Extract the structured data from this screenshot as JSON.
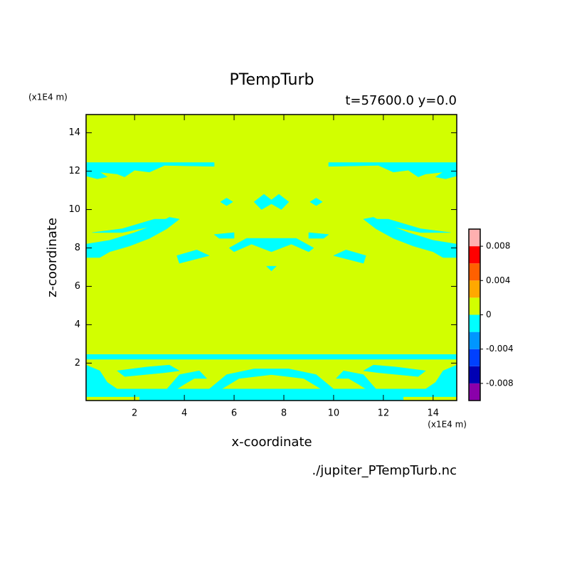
{
  "chart_data": {
    "type": "contourf",
    "title": "PTempTurb",
    "subtitle": "t=57600.0 y=0.0",
    "x_label": "x-coordinate",
    "y_label": "z-coordinate",
    "x_unit": "(x1E4 m)",
    "y_unit": "(x1E4 m)",
    "source": "./jupiter_PTempTurb.nc",
    "xlim": [
      0.05,
      14.95
    ],
    "ylim": [
      0.05,
      14.95
    ],
    "xticks": [
      2,
      4,
      6,
      8,
      10,
      12,
      14
    ],
    "yticks": [
      2,
      4,
      6,
      8,
      10,
      12,
      14
    ],
    "levels": [
      -0.01,
      -0.008,
      -0.006,
      -0.004,
      -0.002,
      0,
      0.002,
      0.004,
      0.006,
      0.008,
      0.01
    ],
    "colors": [
      "#8a00aa",
      "#0000b4",
      "#0040ff",
      "#0096ff",
      "#00ffff",
      "#d2ff00",
      "#ffa800",
      "#ff6000",
      "#ff0000",
      "#ffb0b0"
    ],
    "colorbar_ticks": [
      -0.008,
      -0.004,
      0,
      0.004,
      0.008
    ],
    "regions": [
      {
        "level": 0,
        "x": [
          0.05,
          14.95,
          14.95,
          0.05
        ],
        "z": [
          0.05,
          0.05,
          14.95,
          14.95
        ]
      },
      {
        "level": -0.002,
        "x": [
          0.05,
          5.2,
          5.2,
          3.2,
          2.6,
          2.0,
          1.6,
          1.3,
          0.6,
          0.9,
          0.5,
          0.05
        ],
        "z": [
          12.45,
          12.45,
          12.25,
          12.3,
          11.95,
          12.05,
          11.7,
          11.85,
          11.95,
          11.7,
          11.6,
          11.75
        ]
      },
      {
        "level": -0.002,
        "x": [
          14.95,
          9.8,
          9.8,
          11.8,
          12.4,
          13.0,
          13.4,
          13.7,
          14.4,
          14.1,
          14.5,
          14.95
        ],
        "z": [
          12.45,
          12.45,
          12.25,
          12.3,
          11.95,
          12.05,
          11.7,
          11.85,
          11.95,
          11.7,
          11.6,
          11.75
        ]
      },
      {
        "level": -0.002,
        "x": [
          0.05,
          0.05,
          1.0,
          2.0,
          2.8,
          3.4,
          3.8,
          3.3,
          2.6,
          1.8,
          1.0,
          0.6
        ],
        "z": [
          7.5,
          8.2,
          8.4,
          8.8,
          9.2,
          9.6,
          9.5,
          9.0,
          8.5,
          8.1,
          7.8,
          7.5
        ]
      },
      {
        "level": -0.002,
        "x": [
          14.95,
          14.95,
          14.0,
          13.0,
          12.2,
          11.6,
          11.2,
          11.7,
          12.4,
          13.2,
          14.0,
          14.4
        ],
        "z": [
          7.5,
          8.2,
          8.4,
          8.8,
          9.2,
          9.6,
          9.5,
          9.0,
          8.5,
          8.1,
          7.8,
          7.5
        ]
      },
      {
        "level": -0.002,
        "x": [
          0.3,
          1.5,
          2.8,
          3.3,
          2.6,
          1.5
        ],
        "z": [
          8.8,
          9.0,
          9.5,
          9.5,
          9.1,
          8.8
        ]
      },
      {
        "level": -0.002,
        "x": [
          14.7,
          13.5,
          12.2,
          11.7,
          12.4,
          13.5
        ],
        "z": [
          8.8,
          9.0,
          9.5,
          9.5,
          9.1,
          8.8
        ]
      },
      {
        "level": -0.002,
        "x": [
          3.7,
          4.5,
          5.0,
          4.4,
          3.8
        ],
        "z": [
          7.6,
          7.9,
          7.6,
          7.4,
          7.2
        ]
      },
      {
        "level": -0.002,
        "x": [
          11.3,
          10.5,
          10.0,
          10.6,
          11.2
        ],
        "z": [
          7.6,
          7.9,
          7.6,
          7.4,
          7.2
        ]
      },
      {
        "level": -0.002,
        "x": [
          5.2,
          6.0,
          6.0,
          5.4
        ],
        "z": [
          8.7,
          8.8,
          8.5,
          8.5
        ]
      },
      {
        "level": -0.002,
        "x": [
          9.8,
          9.0,
          9.0,
          9.6
        ],
        "z": [
          8.7,
          8.8,
          8.5,
          8.5
        ]
      },
      {
        "level": -0.002,
        "x": [
          5.8,
          6.5,
          8.5,
          9.2,
          9.0,
          8.3,
          7.5,
          6.7,
          6.0
        ],
        "z": [
          8.0,
          8.5,
          8.5,
          8.0,
          7.8,
          8.2,
          7.8,
          8.2,
          7.8
        ]
      },
      {
        "level": -0.002,
        "x": [
          7.3,
          7.7,
          7.5
        ],
        "z": [
          7.05,
          7.05,
          6.8
        ]
      },
      {
        "level": -0.002,
        "x": [
          5.45,
          5.7,
          5.95,
          5.7
        ],
        "z": [
          10.4,
          10.6,
          10.4,
          10.2
        ]
      },
      {
        "level": -0.002,
        "x": [
          9.55,
          9.3,
          9.05,
          9.3
        ],
        "z": [
          10.4,
          10.6,
          10.4,
          10.2
        ]
      },
      {
        "level": -0.002,
        "x": [
          6.8,
          7.2,
          7.5,
          7.8,
          8.2,
          7.9,
          7.5,
          7.1
        ],
        "z": [
          10.4,
          10.8,
          10.5,
          10.8,
          10.4,
          10.0,
          10.3,
          10.0
        ]
      },
      {
        "level": -0.002,
        "x": [
          0.05,
          14.95,
          14.95,
          0.05
        ],
        "z": [
          2.2,
          2.2,
          2.45,
          2.45
        ]
      },
      {
        "level": -0.002,
        "x": [
          0.05,
          14.95,
          14.95,
          0.05
        ],
        "z": [
          0.25,
          0.25,
          0.65,
          0.65
        ]
      },
      {
        "level": -0.002,
        "x": [
          2.2,
          12.8,
          12.8,
          2.2
        ],
        "z": [
          0.05,
          0.05,
          0.25,
          0.25
        ]
      },
      {
        "level": -0.002,
        "x": [
          1.3,
          2.5,
          3.4,
          3.8,
          3.2,
          2.4,
          1.6
        ],
        "z": [
          1.6,
          1.8,
          1.9,
          1.6,
          1.5,
          1.4,
          1.3
        ]
      },
      {
        "level": -0.002,
        "x": [
          13.7,
          12.5,
          11.6,
          11.2,
          11.8,
          12.6,
          13.4
        ],
        "z": [
          1.6,
          1.8,
          1.9,
          1.6,
          1.5,
          1.4,
          1.3
        ]
      },
      {
        "level": -0.002,
        "x": [
          3.3,
          3.8,
          4.6,
          4.9,
          4.4,
          4.0,
          3.7
        ],
        "z": [
          0.65,
          1.4,
          1.6,
          1.2,
          1.2,
          0.9,
          0.65
        ]
      },
      {
        "level": -0.002,
        "x": [
          11.7,
          11.2,
          10.4,
          10.1,
          10.6,
          11.0,
          11.3
        ],
        "z": [
          0.65,
          1.4,
          1.6,
          1.2,
          1.2,
          0.9,
          0.65
        ]
      },
      {
        "level": -0.002,
        "x": [
          5.0,
          5.7,
          6.8,
          8.2,
          9.3,
          10.0,
          9.5,
          8.8,
          7.5,
          6.2,
          5.5
        ],
        "z": [
          0.65,
          1.4,
          1.7,
          1.7,
          1.4,
          0.65,
          0.65,
          1.2,
          1.4,
          1.2,
          0.65
        ]
      },
      {
        "level": -0.002,
        "x": [
          0.05,
          0.05,
          0.6,
          0.9,
          1.3
        ],
        "z": [
          0.65,
          1.9,
          1.6,
          1.0,
          0.65
        ]
      },
      {
        "level": -0.002,
        "x": [
          14.95,
          14.95,
          14.4,
          14.1,
          13.7
        ],
        "z": [
          0.65,
          1.9,
          1.6,
          1.0,
          0.65
        ]
      }
    ]
  }
}
